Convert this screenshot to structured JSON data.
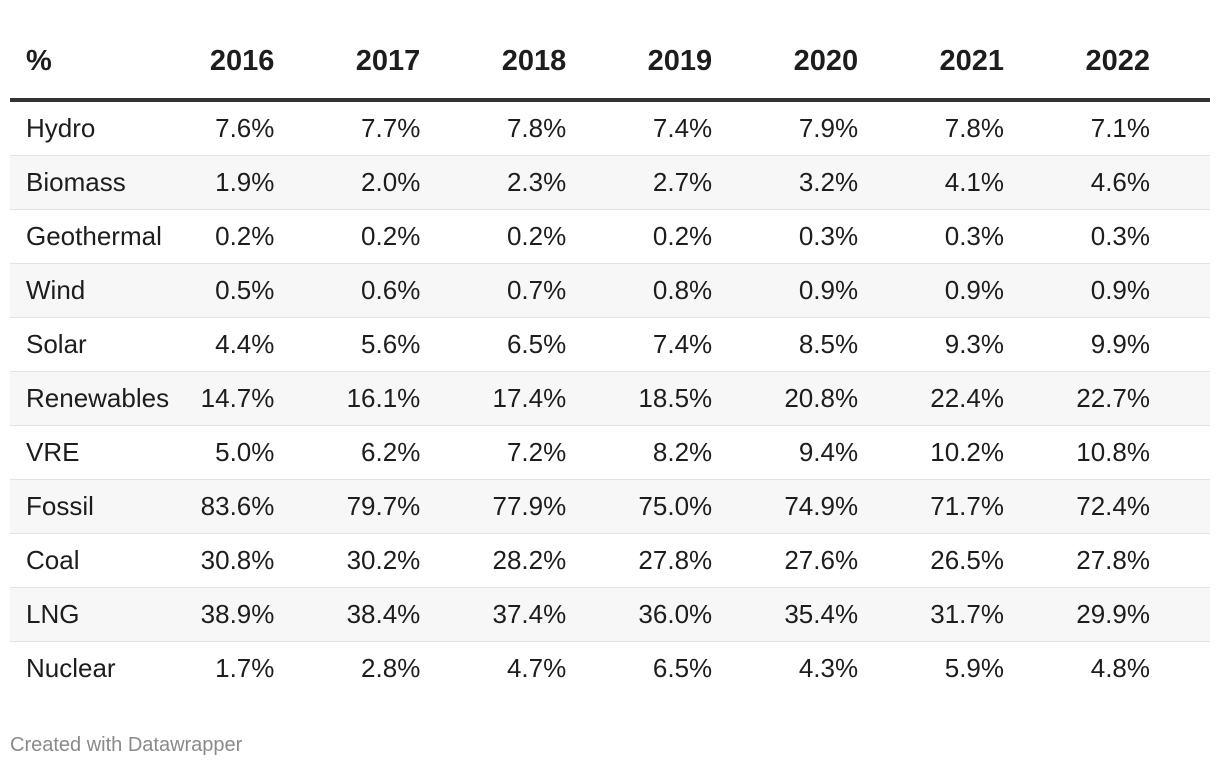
{
  "chart_data": {
    "type": "table",
    "corner_label": "%",
    "columns": [
      "2016",
      "2017",
      "2018",
      "2019",
      "2020",
      "2021",
      "2022"
    ],
    "rows": [
      {
        "label": "Hydro",
        "values": [
          "7.6%",
          "7.7%",
          "7.8%",
          "7.4%",
          "7.9%",
          "7.8%",
          "7.1%"
        ]
      },
      {
        "label": "Biomass",
        "values": [
          "1.9%",
          "2.0%",
          "2.3%",
          "2.7%",
          "3.2%",
          "4.1%",
          "4.6%"
        ]
      },
      {
        "label": "Geothermal",
        "values": [
          "0.2%",
          "0.2%",
          "0.2%",
          "0.2%",
          "0.3%",
          "0.3%",
          "0.3%"
        ]
      },
      {
        "label": "Wind",
        "values": [
          "0.5%",
          "0.6%",
          "0.7%",
          "0.8%",
          "0.9%",
          "0.9%",
          "0.9%"
        ]
      },
      {
        "label": "Solar",
        "values": [
          "4.4%",
          "5.6%",
          "6.5%",
          "7.4%",
          "8.5%",
          "9.3%",
          "9.9%"
        ]
      },
      {
        "label": "Renewables",
        "values": [
          "14.7%",
          "16.1%",
          "17.4%",
          "18.5%",
          "20.8%",
          "22.4%",
          "22.7%"
        ]
      },
      {
        "label": "VRE",
        "values": [
          "5.0%",
          "6.2%",
          "7.2%",
          "8.2%",
          "9.4%",
          "10.2%",
          "10.8%"
        ]
      },
      {
        "label": "Fossil",
        "values": [
          "83.6%",
          "79.7%",
          "77.9%",
          "75.0%",
          "74.9%",
          "71.7%",
          "72.4%"
        ]
      },
      {
        "label": "Coal",
        "values": [
          "30.8%",
          "30.2%",
          "28.2%",
          "27.8%",
          "27.6%",
          "26.5%",
          "27.8%"
        ]
      },
      {
        "label": "LNG",
        "values": [
          "38.9%",
          "38.4%",
          "37.4%",
          "36.0%",
          "35.4%",
          "31.7%",
          "29.9%"
        ]
      },
      {
        "label": "Nuclear",
        "values": [
          "1.7%",
          "2.8%",
          "4.7%",
          "6.5%",
          "4.3%",
          "5.9%",
          "4.8%"
        ]
      }
    ]
  },
  "footer": {
    "credit": "Created with Datawrapper"
  },
  "colors": {
    "header_rule": "#333333",
    "row_stripe": "#f7f7f7",
    "row_divider": "#e2e2e2",
    "footer_text": "#8a8a8a"
  }
}
